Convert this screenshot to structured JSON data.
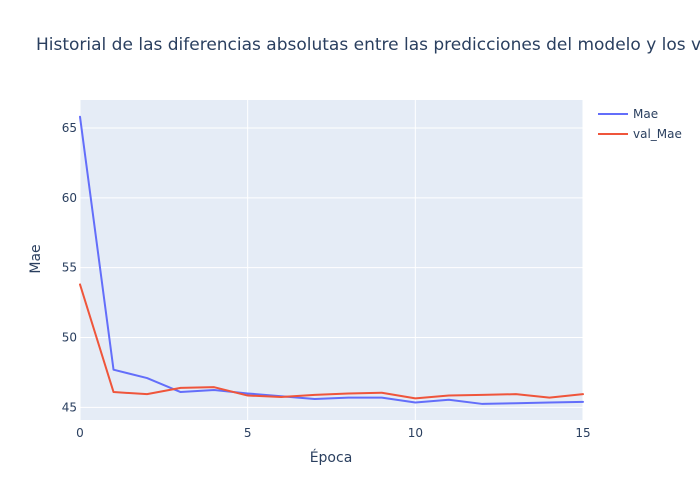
{
  "chart_data": {
    "type": "line",
    "title": "Historial de las diferencias absolutas entre las predicciones del modelo y los v",
    "xlabel": "Época",
    "ylabel": "Mae",
    "xlim": [
      0,
      15
    ],
    "ylim": [
      44.1,
      67.0
    ],
    "x_ticks": [
      0,
      5,
      10,
      15
    ],
    "y_ticks": [
      45,
      50,
      55,
      60,
      65
    ],
    "grid": true,
    "legend_position": "top-right",
    "x": [
      0,
      1,
      2,
      3,
      4,
      5,
      6,
      7,
      8,
      9,
      10,
      11,
      12,
      13,
      14,
      15
    ],
    "series": [
      {
        "name": "Mae",
        "color": "#636efa",
        "values": [
          65.8,
          47.7,
          47.1,
          46.1,
          46.25,
          46.0,
          45.8,
          45.6,
          45.7,
          45.7,
          45.35,
          45.55,
          45.25,
          45.3,
          45.35,
          45.4
        ]
      },
      {
        "name": "val_Mae",
        "color": "#ef553b",
        "values": [
          53.8,
          46.1,
          45.95,
          46.4,
          46.45,
          45.85,
          45.75,
          45.9,
          46.0,
          46.05,
          45.65,
          45.85,
          45.9,
          45.95,
          45.7,
          45.95
        ]
      }
    ]
  }
}
